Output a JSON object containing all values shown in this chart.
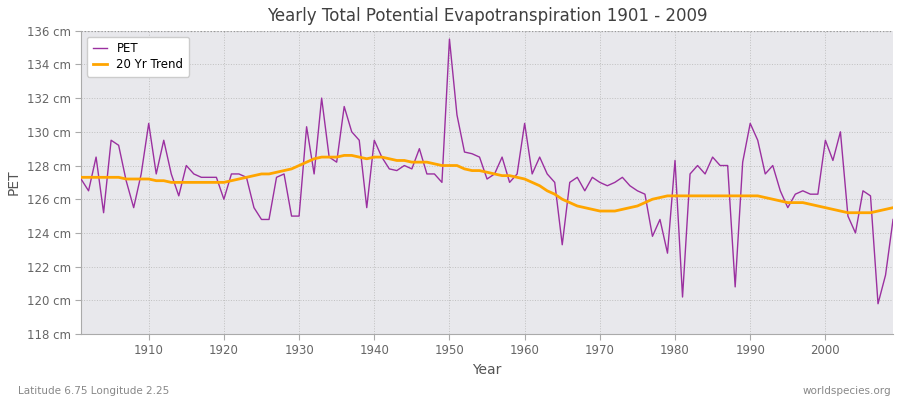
{
  "title": "Yearly Total Potential Evapotranspiration 1901 - 2009",
  "xlabel": "Year",
  "ylabel": "PET",
  "footnote_left": "Latitude 6.75 Longitude 2.25",
  "footnote_right": "worldspecies.org",
  "ylim": [
    118,
    136
  ],
  "xlim": [
    1901,
    2009
  ],
  "yticks": [
    118,
    120,
    122,
    124,
    126,
    128,
    130,
    132,
    134,
    136
  ],
  "xticks": [
    1910,
    1920,
    1930,
    1940,
    1950,
    1960,
    1970,
    1980,
    1990,
    2000
  ],
  "pet_color": "#9B30A0",
  "trend_color": "#FFA500",
  "fig_bg_color": "#FFFFFF",
  "plot_bg_color": "#E8E8EC",
  "title_color": "#404040",
  "years": [
    1901,
    1902,
    1903,
    1904,
    1905,
    1906,
    1907,
    1908,
    1909,
    1910,
    1911,
    1912,
    1913,
    1914,
    1915,
    1916,
    1917,
    1918,
    1919,
    1920,
    1921,
    1922,
    1923,
    1924,
    1925,
    1926,
    1927,
    1928,
    1929,
    1930,
    1931,
    1932,
    1933,
    1934,
    1935,
    1936,
    1937,
    1938,
    1939,
    1940,
    1941,
    1942,
    1943,
    1944,
    1945,
    1946,
    1947,
    1948,
    1949,
    1950,
    1951,
    1952,
    1953,
    1954,
    1955,
    1956,
    1957,
    1958,
    1959,
    1960,
    1961,
    1962,
    1963,
    1964,
    1965,
    1966,
    1967,
    1968,
    1969,
    1970,
    1971,
    1972,
    1973,
    1974,
    1975,
    1976,
    1977,
    1978,
    1979,
    1980,
    1981,
    1982,
    1983,
    1984,
    1985,
    1986,
    1987,
    1988,
    1989,
    1990,
    1991,
    1992,
    1993,
    1994,
    1995,
    1996,
    1997,
    1998,
    1999,
    2000,
    2001,
    2002,
    2003,
    2004,
    2005,
    2006,
    2007,
    2008,
    2009
  ],
  "pet": [
    127.2,
    126.5,
    128.5,
    125.2,
    129.5,
    129.2,
    127.1,
    125.5,
    127.5,
    130.5,
    127.5,
    129.5,
    127.5,
    126.2,
    128.0,
    127.5,
    127.3,
    127.3,
    127.3,
    126.0,
    127.5,
    127.5,
    127.3,
    125.5,
    124.8,
    124.8,
    127.3,
    127.5,
    125.0,
    125.0,
    130.3,
    127.5,
    132.0,
    128.5,
    128.2,
    131.5,
    130.0,
    129.5,
    125.5,
    129.5,
    128.5,
    127.8,
    127.7,
    128.0,
    127.8,
    129.0,
    127.5,
    127.5,
    127.0,
    135.5,
    131.0,
    128.8,
    128.7,
    128.5,
    127.2,
    127.5,
    128.5,
    127.0,
    127.5,
    130.5,
    127.5,
    128.5,
    127.5,
    127.0,
    123.3,
    127.0,
    127.3,
    126.5,
    127.3,
    127.0,
    126.8,
    127.0,
    127.3,
    126.8,
    126.5,
    126.3,
    123.8,
    124.8,
    122.8,
    128.3,
    120.2,
    127.5,
    128.0,
    127.5,
    128.5,
    128.0,
    128.0,
    120.8,
    128.2,
    130.5,
    129.5,
    127.5,
    128.0,
    126.5,
    125.5,
    126.3,
    126.5,
    126.3,
    126.3,
    129.5,
    128.3,
    130.0,
    125.0,
    124.0,
    126.5,
    126.2,
    119.8,
    121.5,
    124.8
  ],
  "trend": [
    127.3,
    127.3,
    127.3,
    127.3,
    127.3,
    127.3,
    127.2,
    127.2,
    127.2,
    127.2,
    127.1,
    127.1,
    127.0,
    127.0,
    127.0,
    127.0,
    127.0,
    127.0,
    127.0,
    127.0,
    127.1,
    127.2,
    127.3,
    127.4,
    127.5,
    127.5,
    127.6,
    127.7,
    127.8,
    128.0,
    128.2,
    128.4,
    128.5,
    128.5,
    128.5,
    128.6,
    128.6,
    128.5,
    128.4,
    128.5,
    128.5,
    128.4,
    128.3,
    128.3,
    128.2,
    128.2,
    128.2,
    128.1,
    128.0,
    128.0,
    128.0,
    127.8,
    127.7,
    127.7,
    127.6,
    127.5,
    127.4,
    127.4,
    127.3,
    127.2,
    127.0,
    126.8,
    126.5,
    126.3,
    126.0,
    125.8,
    125.6,
    125.5,
    125.4,
    125.3,
    125.3,
    125.3,
    125.4,
    125.5,
    125.6,
    125.8,
    126.0,
    126.1,
    126.2,
    126.2,
    126.2,
    126.2,
    126.2,
    126.2,
    126.2,
    126.2,
    126.2,
    126.2,
    126.2,
    126.2,
    126.2,
    126.1,
    126.0,
    125.9,
    125.8,
    125.8,
    125.8,
    125.7,
    125.6,
    125.5,
    125.4,
    125.3,
    125.2,
    125.2,
    125.2,
    125.2,
    125.3,
    125.4,
    125.5
  ]
}
